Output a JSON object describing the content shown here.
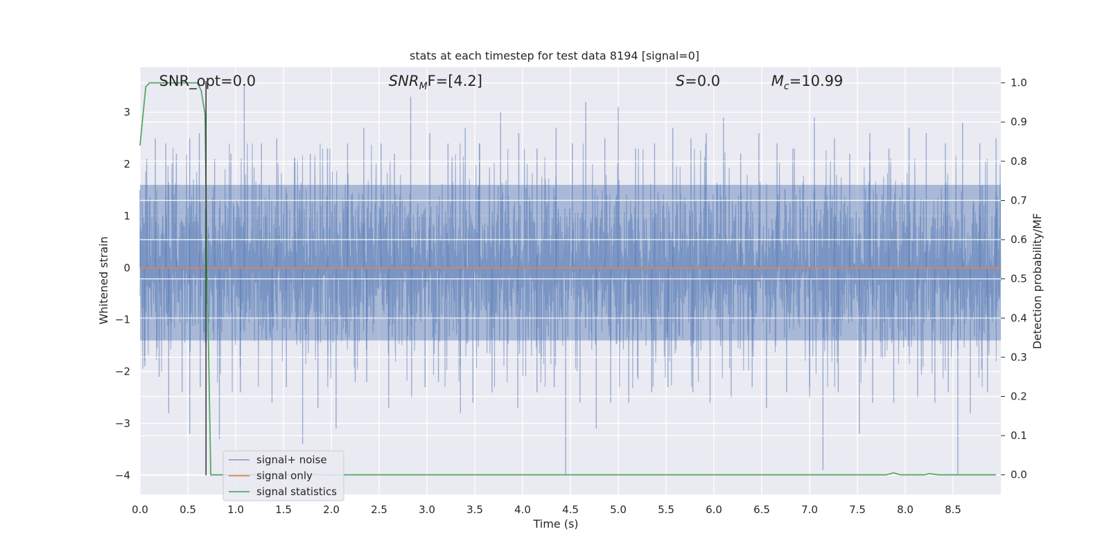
{
  "chart_data": {
    "type": "line",
    "title": "stats at each timestep for test data 8194 [signal=0]",
    "xlabel": "Time (s)",
    "ylabel": "Whitened strain",
    "y2label": "Detection probability/MF",
    "xlim": [
      0.0,
      9.0
    ],
    "ylim": [
      -4.37,
      3.87
    ],
    "y2lim": [
      -0.05,
      1.04
    ],
    "x_ticks": [
      0.0,
      0.5,
      1.0,
      1.5,
      2.0,
      2.5,
      3.0,
      3.5,
      4.0,
      4.5,
      5.0,
      5.5,
      6.0,
      6.5,
      7.0,
      7.5,
      8.0,
      8.5
    ],
    "x_tick_labels": [
      "0.0",
      "0.5",
      "1.0",
      "1.5",
      "2.0",
      "2.5",
      "3.0",
      "3.5",
      "4.0",
      "4.5",
      "5.0",
      "5.5",
      "6.0",
      "6.5",
      "7.0",
      "7.5",
      "8.0",
      "8.5"
    ],
    "y_ticks": [
      3,
      2,
      1,
      0,
      -1,
      -2,
      -3,
      -4
    ],
    "y_tick_labels": [
      "3",
      "2",
      "1",
      "0",
      "−1",
      "−2",
      "−3",
      "−4"
    ],
    "y2_ticks": [
      1.0,
      0.9,
      0.8,
      0.7,
      0.6,
      0.5,
      0.4,
      0.3,
      0.2,
      0.1,
      0.0
    ],
    "y2_tick_labels": [
      "1.0",
      "0.9",
      "0.8",
      "0.7",
      "0.6",
      "0.5",
      "0.4",
      "0.3",
      "0.2",
      "0.1",
      "0.0"
    ],
    "grid": true,
    "legend_position": "bottom-left",
    "annotations": [
      {
        "label": "SNR_opt=0.0",
        "x": 0.2,
        "y": 3.6
      },
      {
        "label": "SNR_MF=[4.2]",
        "math": true,
        "main": "SNR",
        "sub": "M",
        "after": "F=[4.2]",
        "x": 2.6,
        "y": 3.6
      },
      {
        "label": "S=0.0",
        "math": true,
        "main": "S",
        "sub": "",
        "after": "=0.0",
        "x": 5.6,
        "y": 3.6
      },
      {
        "label": "M_c=10.99",
        "math": true,
        "main": "M",
        "sub": "c",
        "after": "=10.99",
        "x": 6.6,
        "y": 3.6
      }
    ],
    "series": [
      {
        "name": "signal+ noise",
        "color": "#4c72b0",
        "axis": "left",
        "kind": "noise",
        "noise_band": [
          -1.4,
          1.6
        ],
        "peaks_x": [
          0.0,
          0.07,
          0.16,
          0.27,
          0.38,
          0.52,
          0.62,
          0.78,
          0.95,
          1.09,
          1.27,
          1.43,
          1.62,
          1.78,
          1.96,
          2.17,
          2.34,
          2.52,
          2.66,
          2.83,
          3.03,
          3.22,
          3.4,
          3.55,
          3.77,
          3.96,
          4.15,
          4.35,
          4.52,
          4.66,
          4.86,
          5.0,
          5.18,
          5.38,
          5.57,
          5.76,
          5.92,
          6.1,
          6.28,
          6.47,
          6.66,
          6.84,
          7.05,
          7.26,
          7.42,
          7.63,
          7.83,
          8.04,
          8.22,
          8.42,
          8.6,
          8.78,
          8.95
        ],
        "peaks_y": [
          1.5,
          2.1,
          2.5,
          2.4,
          2.2,
          2.5,
          2.6,
          2.1,
          2.2,
          3.5,
          2.4,
          2.5,
          2.1,
          2.2,
          2.3,
          2.4,
          2.7,
          2.4,
          2.2,
          3.3,
          2.6,
          2.4,
          2.7,
          2.4,
          3.0,
          2.6,
          2.3,
          2.7,
          2.4,
          3.2,
          2.5,
          3.1,
          2.3,
          2.4,
          2.7,
          2.5,
          2.6,
          2.9,
          2.2,
          2.6,
          2.4,
          2.3,
          2.9,
          2.5,
          2.2,
          2.6,
          2.3,
          2.7,
          2.6,
          2.4,
          2.8,
          2.4,
          2.5
        ],
        "dips_x": [
          0.05,
          0.2,
          0.3,
          0.44,
          0.52,
          0.63,
          0.83,
          1.05,
          1.38,
          1.53,
          1.7,
          1.86,
          2.05,
          2.25,
          2.37,
          2.6,
          2.84,
          2.98,
          3.12,
          3.35,
          3.48,
          3.68,
          3.95,
          4.15,
          4.33,
          4.45,
          4.6,
          4.77,
          4.92,
          5.11,
          5.35,
          5.52,
          5.78,
          5.96,
          6.18,
          6.4,
          6.55,
          6.76,
          7.0,
          7.14,
          7.3,
          7.52,
          7.66,
          7.88,
          8.13,
          8.31,
          8.45,
          8.55,
          8.68,
          8.86
        ],
        "dips_y": [
          -1.9,
          -2.1,
          -2.8,
          -2.4,
          -3.2,
          -2.3,
          -3.3,
          -2.4,
          -2.6,
          -2.3,
          -3.4,
          -2.7,
          -3.1,
          -2.2,
          -2.2,
          -2.7,
          -2.5,
          -2.3,
          -2.2,
          -2.8,
          -2.6,
          -2.4,
          -2.7,
          -2.4,
          -2.3,
          -4.0,
          -2.6,
          -3.1,
          -2.6,
          -2.6,
          -2.4,
          -2.3,
          -2.4,
          -2.6,
          -2.5,
          -2.3,
          -2.7,
          -2.4,
          -2.5,
          -3.9,
          -2.4,
          -3.2,
          -2.6,
          -2.6,
          -2.5,
          -2.6,
          -2.4,
          -4.0,
          -2.8,
          -2.4
        ]
      },
      {
        "name": "signal only",
        "color": "#dd8452",
        "axis": "left",
        "x": [
          0.0,
          9.0
        ],
        "y": [
          0.0,
          0.0
        ]
      },
      {
        "name": "signal statistics",
        "color": "#55a868",
        "axis": "right",
        "x": [
          0.0,
          0.06,
          0.1,
          0.15,
          0.3,
          0.45,
          0.6,
          0.64,
          0.68,
          0.7,
          0.74,
          0.8,
          1.5,
          3.0,
          5.0,
          7.0,
          7.8,
          7.88,
          7.95,
          8.05,
          8.2,
          8.25,
          8.35,
          8.5,
          8.7,
          8.95
        ],
        "y": [
          0.84,
          0.99,
          1.0,
          1.0,
          1.0,
          1.0,
          1.0,
          0.98,
          0.92,
          0.55,
          0.0,
          0.0,
          0.0,
          0.0,
          0.0,
          0.0,
          0.0,
          0.005,
          0.0,
          0.0,
          0.0,
          0.003,
          0.0,
          0.0,
          0.0,
          0.0
        ]
      }
    ],
    "vertical_line": {
      "x": 0.69,
      "y_from": -4.0,
      "y_to": 3.6,
      "color": "#333333"
    }
  }
}
